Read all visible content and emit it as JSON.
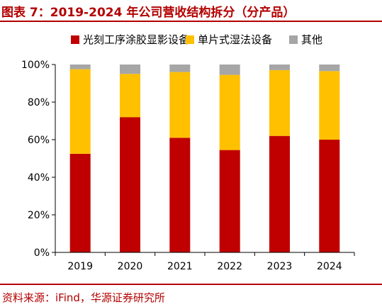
{
  "figure": {
    "title": "图表 7：2019-2024 年公司营收结构拆分（分产品）",
    "source": "资料来源：iFind，华源证券研究所"
  },
  "colors": {
    "accent": "#b30000",
    "series": [
      "#c00000",
      "#ffc000",
      "#a6a6a6"
    ],
    "axis": "#000000"
  },
  "chart_data": {
    "type": "bar",
    "stacked": true,
    "categories": [
      "2019",
      "2020",
      "2021",
      "2022",
      "2023",
      "2024"
    ],
    "series": [
      {
        "name": "光刻工序涂胶显影设备",
        "values": [
          52.5,
          72.0,
          61.0,
          54.5,
          62.0,
          60.0
        ]
      },
      {
        "name": "单片式湿法设备",
        "values": [
          45.0,
          23.0,
          35.0,
          40.0,
          35.0,
          36.5
        ]
      },
      {
        "name": "其他",
        "values": [
          2.5,
          5.0,
          4.0,
          5.5,
          3.0,
          3.5
        ]
      }
    ],
    "ylim": [
      0,
      100
    ],
    "yticks": [
      0,
      20,
      40,
      60,
      80,
      100
    ],
    "ytick_labels": [
      "0%",
      "20%",
      "40%",
      "60%",
      "80%",
      "100%"
    ],
    "legend_position": "top",
    "grid": false
  }
}
